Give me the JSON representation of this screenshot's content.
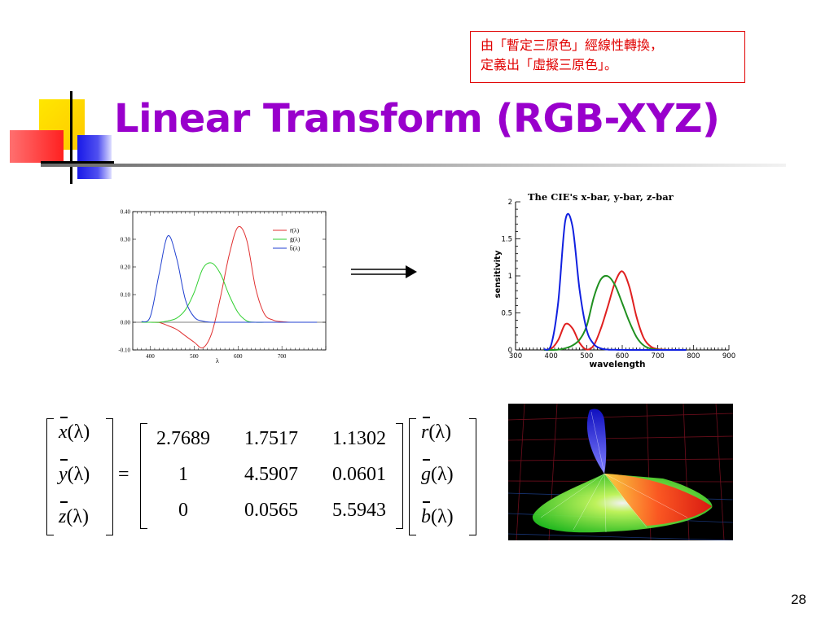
{
  "slide": {
    "title": "Linear Transform (RGB-XYZ)",
    "note_line1": "由「暫定三原色」經線性轉換，",
    "note_line2": "定義出「虛擬三原色」。",
    "page_number": "28"
  },
  "chart_data": [
    {
      "type": "line",
      "x": [
        380,
        400,
        420,
        440,
        460,
        480,
        500,
        520,
        540,
        560,
        580,
        600,
        620,
        640,
        660,
        680,
        700,
        720,
        740,
        760,
        780
      ],
      "xlabel": "λ",
      "xticks": [
        "400",
        "500",
        "600",
        "700"
      ],
      "yticks": [
        "0.40",
        "0.30",
        "0.20",
        "0.10",
        "0.00",
        "-0.10"
      ],
      "xlim": [
        360,
        800
      ],
      "ylim": [
        -0.1,
        0.4
      ],
      "legend_position": "top-right",
      "series": [
        {
          "name": "r̄(λ)",
          "color": "#e03030",
          "values": [
            0.0,
            0.0,
            -0.001,
            -0.012,
            -0.026,
            -0.049,
            -0.072,
            -0.092,
            -0.039,
            0.091,
            0.245,
            0.344,
            0.296,
            0.124,
            0.03,
            0.008,
            0.002,
            0.0,
            0.0,
            0.0,
            0.0
          ]
        },
        {
          "name": "ḡ(λ)",
          "color": "#30d030",
          "values": [
            0.0,
            0.0,
            0.0,
            0.005,
            0.015,
            0.045,
            0.108,
            0.195,
            0.214,
            0.175,
            0.097,
            0.035,
            0.005,
            0.0,
            0.0,
            0.0,
            0.0,
            0.0,
            0.0,
            0.0,
            0.0
          ]
        },
        {
          "name": "b̄(λ)",
          "color": "#2040d0",
          "values": [
            0.002,
            0.02,
            0.174,
            0.312,
            0.231,
            0.082,
            0.019,
            0.004,
            0.0,
            0.0,
            0.0,
            0.0,
            0.0,
            0.0,
            0.0,
            0.0,
            0.0,
            0.0,
            0.0,
            0.0,
            0.0
          ]
        }
      ]
    },
    {
      "type": "line",
      "title": "The CIE's x-bar, y-bar, z-bar",
      "xlabel": "wavelength",
      "ylabel": "sensitivity",
      "xticks": [
        "300",
        "400",
        "500",
        "600",
        "700",
        "800",
        "900"
      ],
      "yticks": [
        "2",
        "1.5",
        "1",
        "0.5",
        "0"
      ],
      "xlim": [
        300,
        900
      ],
      "ylim": [
        0,
        2
      ],
      "x": [
        380,
        400,
        420,
        440,
        460,
        480,
        500,
        520,
        540,
        560,
        580,
        600,
        620,
        640,
        660,
        680,
        700,
        720,
        740,
        760,
        780
      ],
      "series": [
        {
          "color": "#e02020",
          "values": [
            0.001,
            0.014,
            0.134,
            0.348,
            0.291,
            0.096,
            0.005,
            0.063,
            0.29,
            0.595,
            0.916,
            1.062,
            0.854,
            0.448,
            0.165,
            0.047,
            0.011,
            0.003,
            0.001,
            0.0,
            0.0
          ]
        },
        {
          "color": "#209020",
          "values": [
            0.0,
            0.0,
            0.004,
            0.023,
            0.06,
            0.139,
            0.323,
            0.71,
            0.954,
            0.995,
            0.87,
            0.631,
            0.381,
            0.175,
            0.061,
            0.017,
            0.004,
            0.001,
            0.0,
            0.0,
            0.0
          ]
        },
        {
          "color": "#1020e0",
          "values": [
            0.007,
            0.068,
            0.646,
            1.747,
            1.669,
            0.813,
            0.272,
            0.078,
            0.02,
            0.004,
            0.002,
            0.001,
            0.0,
            0.0,
            0.0,
            0.0,
            0.0,
            0.0,
            0.0,
            0.0,
            0.0
          ]
        }
      ]
    }
  ],
  "equation": {
    "lhs": [
      "x",
      "y",
      "z"
    ],
    "lam": "(λ)",
    "equals": "=",
    "matrix": [
      [
        "2.7689",
        "1.7517",
        "1.1302"
      ],
      [
        "1",
        "4.5907",
        "0.0601"
      ],
      [
        "0",
        "0.0565",
        "5.5943"
      ]
    ],
    "rhs": [
      "r",
      "g",
      "b"
    ]
  },
  "colors": {
    "title": "#9900cc",
    "note": "#e00000"
  }
}
